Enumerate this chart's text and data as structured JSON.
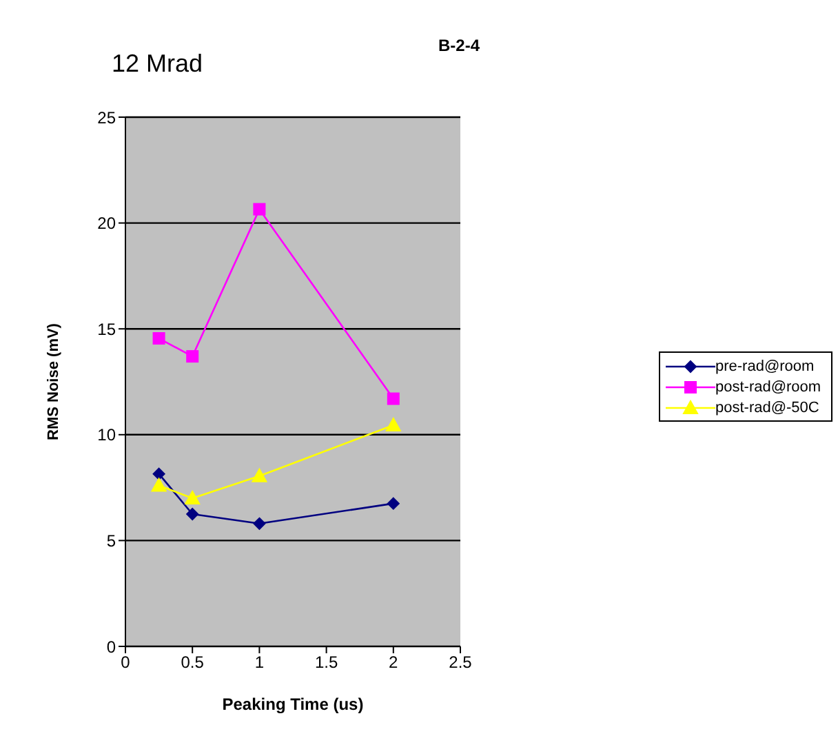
{
  "chart_data": {
    "type": "line",
    "title": "B-2-4",
    "annotations": [
      "12 Mrad"
    ],
    "xlabel": "Peaking Time (us)",
    "ylabel": "RMS Noise (mV)",
    "x": [
      0.25,
      0.5,
      1,
      2
    ],
    "series": [
      {
        "name": "pre-rad@room",
        "color": "#000080",
        "marker": "diamond",
        "values": [
          8.15,
          6.25,
          5.8,
          6.75
        ]
      },
      {
        "name": "post-rad@room",
        "color": "#ff00ff",
        "marker": "square",
        "values": [
          14.55,
          13.7,
          20.65,
          11.7
        ]
      },
      {
        "name": "post-rad@-50C",
        "color": "#ffff00",
        "marker": "triangle",
        "values": [
          7.6,
          7.0,
          8.05,
          10.45
        ]
      }
    ],
    "xlim": [
      0,
      2.5
    ],
    "xticks": [
      0,
      0.5,
      1,
      1.5,
      2,
      2.5
    ],
    "ylim": [
      0,
      25
    ],
    "yticks": [
      0,
      5,
      10,
      15,
      20,
      25
    ],
    "grid": "y",
    "legend": "right",
    "line_style": "solid"
  }
}
